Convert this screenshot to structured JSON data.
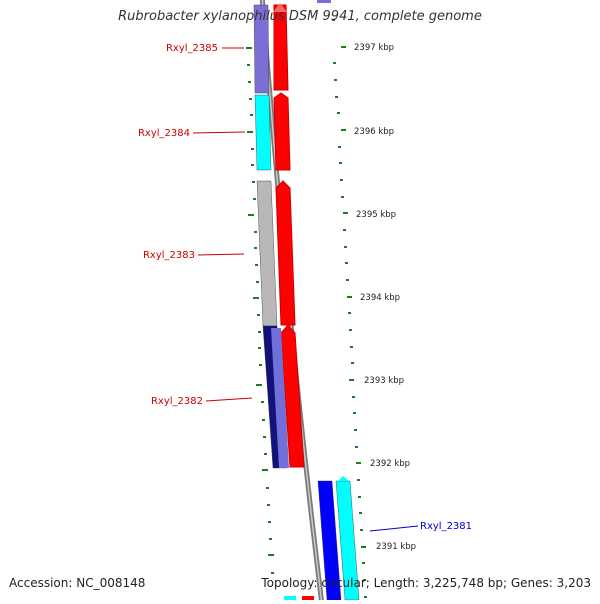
{
  "title": "Rubrobacter xylanophilus DSM 9941, complete genome",
  "footer": {
    "accession": "Accession: NC_008148",
    "summary": "Topology: circular; Length: 3,225,748 bp; Genes: 3,203"
  },
  "colors": {
    "gene_label_left": "#cc0000",
    "gene_label_right": "#0000cc",
    "tick": "#1a7f1a",
    "backbone": "#7a7a7a"
  },
  "genes": [
    {
      "id": "Rxyl_2385",
      "label": "Rxyl_2385",
      "color": "#7b6fd6"
    },
    {
      "id": "Rxyl_2384",
      "label": "Rxyl_2384",
      "color": "#00ffff"
    },
    {
      "id": "Rxyl_2383",
      "label": "Rxyl_2383",
      "color": "#b8b8b8"
    },
    {
      "id": "Rxyl_2382",
      "label": "Rxyl_2382",
      "color": "#12127a"
    },
    {
      "id": "Rxyl_2381",
      "label": "Rxyl_2381",
      "color": "#0000ff"
    }
  ],
  "kbp_labels": [
    "2397 kbp",
    "2396 kbp",
    "2395 kbp",
    "2394 kbp",
    "2393 kbp",
    "2392 kbp",
    "2391 kbp"
  ]
}
